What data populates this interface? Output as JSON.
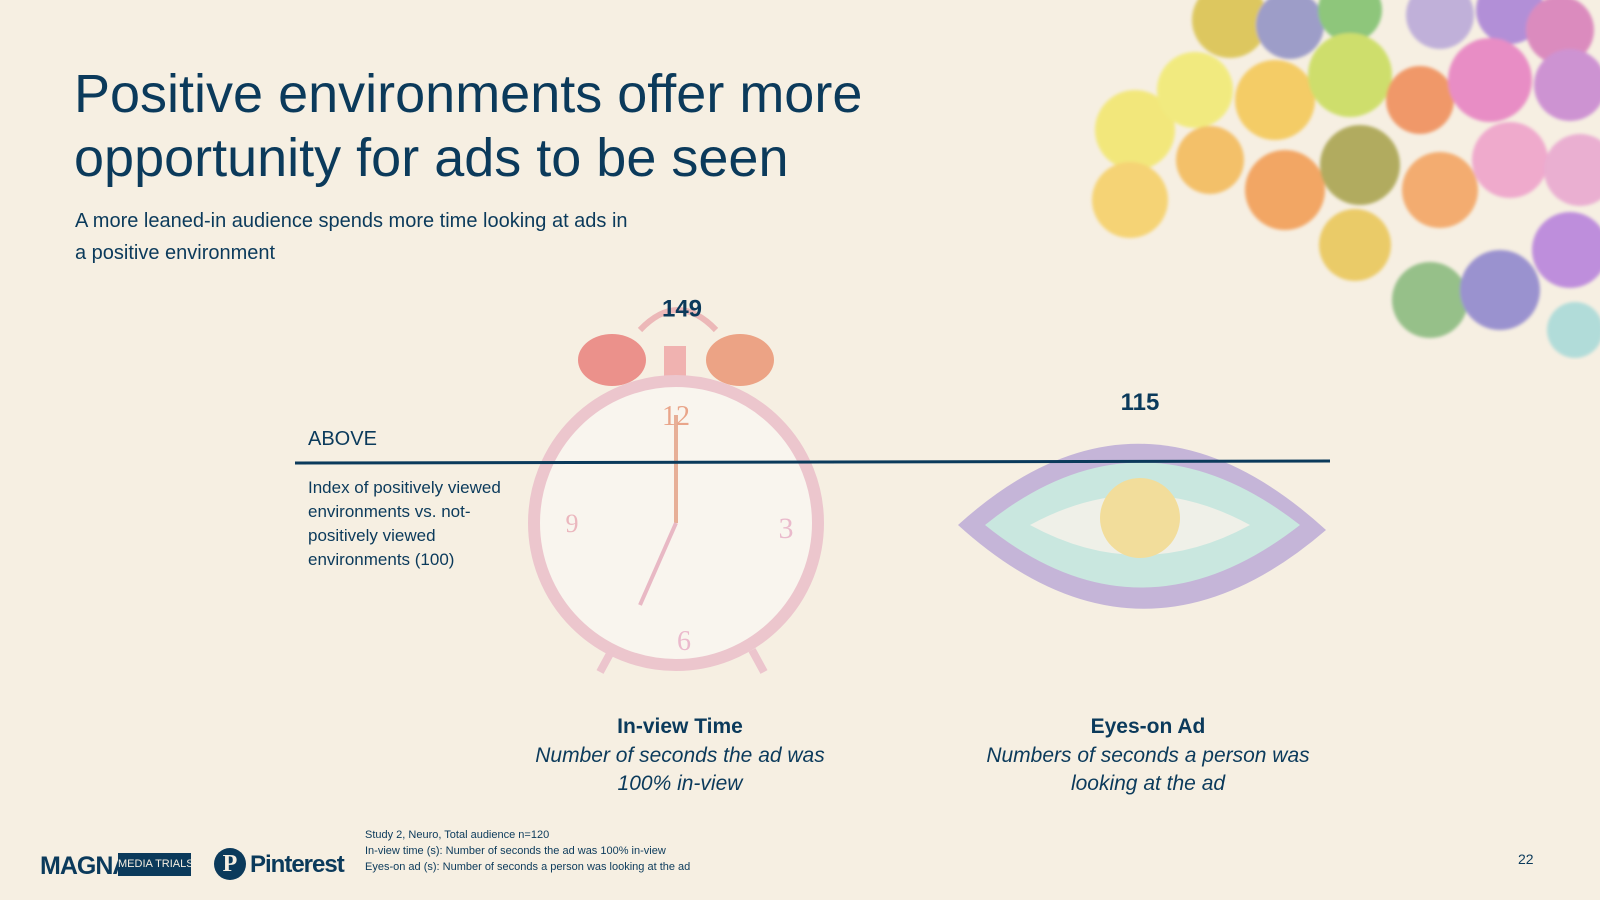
{
  "header": {
    "title": "Positive environments offer more opportunity for ads to be seen",
    "subtitle": "A more leaned-in audience spends more time looking at ads in a positive environment"
  },
  "chart_data": {
    "type": "bar",
    "title": "",
    "baseline_value": 100,
    "baseline_label": "ABOVE",
    "baseline_note": "Index of positively viewed environments vs. not-positively viewed environments (100)",
    "categories": [
      "In-view Time",
      "Eyes-on Ad"
    ],
    "values": [
      149,
      115
    ],
    "value_labels": [
      "149",
      "115"
    ],
    "descriptions": [
      "Number of seconds the ad was 100% in-view",
      "Numbers of seconds a person was looking at the ad"
    ],
    "icons": [
      "alarm-clock-icon",
      "eye-icon"
    ]
  },
  "footer": {
    "notes": [
      "Study 2, Neuro, Total audience n=120",
      "In-view time (s): Number of seconds the ad was 100% in-view",
      "Eyes-on ad (s): Number of seconds a person was looking at the ad"
    ],
    "logos": {
      "magna": "MAGNA",
      "media_trials": "MEDIA TRIALS",
      "pinterest_mark": "P",
      "pinterest": "Pinterest"
    },
    "page_number": "22"
  },
  "colors": {
    "background": "#f6efe2",
    "text": "#0b3a5b",
    "baseline": "#0b3a5b"
  }
}
